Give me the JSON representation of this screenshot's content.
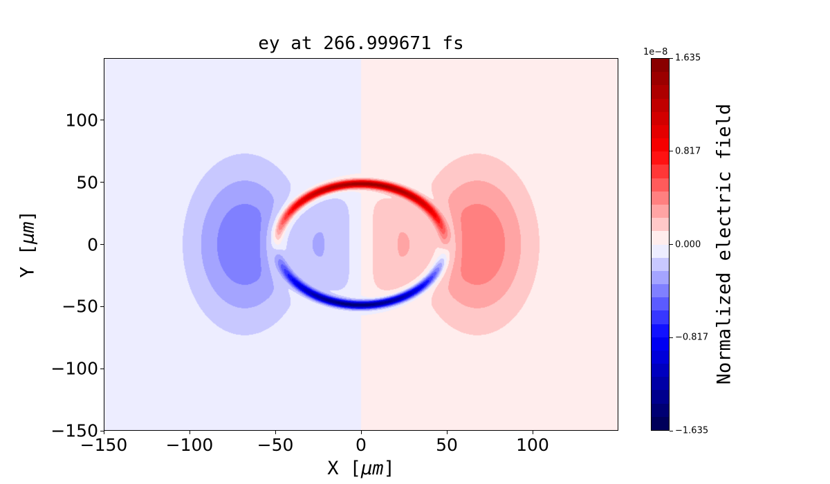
{
  "chart_data": {
    "type": "heatmap",
    "title": "ey at 266.999671 fs",
    "xlabel_prefix": "X [",
    "xlabel_unit": "μm",
    "xlabel_suffix": "]",
    "ylabel_prefix": "Y [",
    "ylabel_unit": "μm",
    "ylabel_suffix": "]",
    "xlim": [
      -150,
      150
    ],
    "ylim": [
      -150,
      150
    ],
    "xticks": [
      -150,
      -100,
      -50,
      0,
      50,
      100
    ],
    "xtick_labels": [
      "−150",
      "−100",
      "−50",
      "0",
      "50",
      "100"
    ],
    "yticks": [
      -150,
      -100,
      -50,
      0,
      50,
      100
    ],
    "ytick_labels": [
      "−150",
      "−100",
      "−50",
      "0",
      "50",
      "100"
    ],
    "colormap": "seismic",
    "levels": 28,
    "colorbar": {
      "label": "Normalized electric field",
      "exponent": "1e−8",
      "range": [
        -1.635,
        1.635
      ],
      "ticks": [
        1.635,
        0.817,
        0.0,
        -0.817,
        -1.635
      ],
      "tick_labels": [
        "1.635",
        "0.817",
        "0.000",
        "−0.817",
        "−1.635"
      ]
    }
  }
}
